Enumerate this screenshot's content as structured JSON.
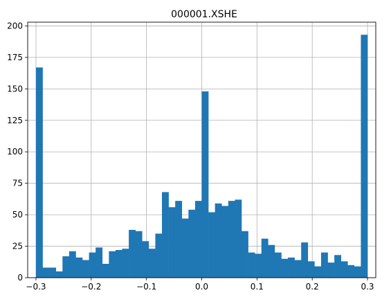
{
  "chart_data": {
    "type": "bar",
    "title": "000001.XSHE",
    "xlabel": "",
    "ylabel": "",
    "xlim": [
      -0.315,
      0.315
    ],
    "ylim": [
      0,
      203
    ],
    "grid": true,
    "bar_color": "#1f77b4",
    "bin_edges": [
      -0.3,
      -0.288,
      -0.276,
      -0.264,
      -0.252,
      -0.24,
      -0.228,
      -0.216,
      -0.204,
      -0.192,
      -0.18,
      -0.168,
      -0.156,
      -0.144,
      -0.132,
      -0.12,
      -0.108,
      -0.096,
      -0.084,
      -0.072,
      -0.06,
      -0.048,
      -0.036,
      -0.024,
      -0.012,
      0.0,
      0.012,
      0.024,
      0.036,
      0.048,
      0.06,
      0.072,
      0.084,
      0.096,
      0.108,
      0.12,
      0.132,
      0.144,
      0.156,
      0.168,
      0.18,
      0.192,
      0.204,
      0.216,
      0.228,
      0.24,
      0.252,
      0.264,
      0.276,
      0.288,
      0.3
    ],
    "counts": [
      167,
      8,
      8,
      5,
      17,
      21,
      16,
      14,
      20,
      24,
      11,
      21,
      22,
      23,
      38,
      37,
      29,
      23,
      35,
      68,
      56,
      61,
      47,
      54,
      61,
      148,
      52,
      59,
      57,
      61,
      62,
      37,
      20,
      19,
      31,
      26,
      20,
      15,
      16,
      14,
      28,
      13,
      9,
      20,
      12,
      18,
      13,
      10,
      9,
      193
    ],
    "x_ticks": [
      -0.3,
      -0.2,
      -0.1,
      0.0,
      0.1,
      0.2,
      0.3
    ],
    "x_tick_labels": [
      "−0.3",
      "−0.2",
      "−0.1",
      "0.0",
      "0.1",
      "0.2",
      "0.3"
    ],
    "y_ticks": [
      0,
      25,
      50,
      75,
      100,
      125,
      150,
      175,
      200
    ],
    "y_tick_labels": [
      "0",
      "25",
      "50",
      "75",
      "100",
      "125",
      "150",
      "175",
      "200"
    ]
  }
}
